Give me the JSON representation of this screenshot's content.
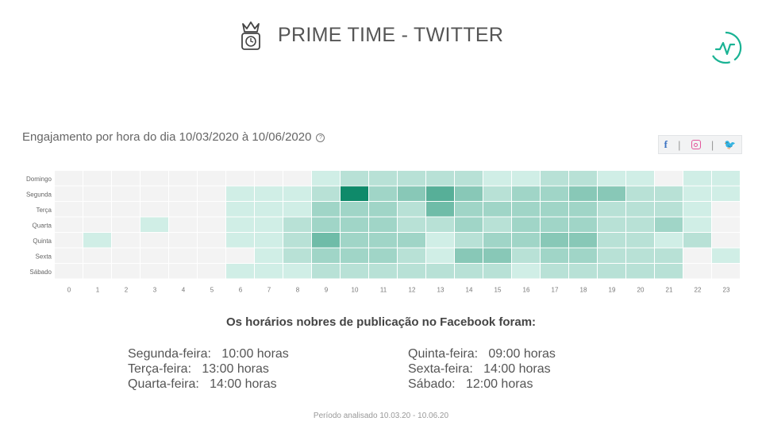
{
  "header": {
    "title": "PRIME TIME - TWITTER",
    "crown_icon": "crown-clock-icon",
    "logo_icon": "activity-logo-icon",
    "accent": "#1ab394"
  },
  "subtitle": "Engajamento por hora do dia 10/03/2020 à 10/06/2020",
  "help_symbol": "?",
  "social": {
    "facebook": "f",
    "separator": "|",
    "twitter": "🐦"
  },
  "chart_data": {
    "type": "heatmap",
    "rows": [
      "Domingo",
      "Segunda",
      "Terça",
      "Quarta",
      "Quinta",
      "Sexta",
      "Sábado"
    ],
    "columns": [
      "0",
      "1",
      "2",
      "3",
      "4",
      "5",
      "6",
      "7",
      "8",
      "9",
      "10",
      "11",
      "12",
      "13",
      "14",
      "15",
      "16",
      "17",
      "18",
      "19",
      "20",
      "21",
      "22",
      "23"
    ],
    "scale": "0 = no engagement (grey), 1 = minimal, 9 = maximum (dark green)",
    "values": [
      [
        0,
        0,
        0,
        0,
        0,
        0,
        0,
        0,
        0,
        1,
        2,
        2,
        2,
        2,
        2,
        1,
        1,
        2,
        2,
        1,
        1,
        0,
        1,
        1
      ],
      [
        0,
        0,
        0,
        0,
        0,
        0,
        1,
        1,
        1,
        2,
        9,
        3,
        4,
        6,
        4,
        2,
        3,
        3,
        4,
        4,
        2,
        2,
        1,
        1
      ],
      [
        0,
        0,
        0,
        0,
        0,
        0,
        1,
        1,
        1,
        3,
        3,
        3,
        2,
        5,
        3,
        3,
        3,
        3,
        3,
        2,
        2,
        2,
        1,
        0
      ],
      [
        0,
        0,
        0,
        1,
        0,
        0,
        1,
        1,
        2,
        3,
        3,
        3,
        2,
        2,
        3,
        2,
        3,
        3,
        3,
        2,
        2,
        3,
        1,
        0
      ],
      [
        0,
        1,
        0,
        0,
        0,
        0,
        1,
        1,
        2,
        5,
        3,
        3,
        3,
        1,
        2,
        3,
        3,
        4,
        4,
        2,
        2,
        1,
        2,
        0
      ],
      [
        0,
        0,
        0,
        0,
        0,
        0,
        0,
        1,
        2,
        3,
        3,
        3,
        2,
        1,
        4,
        4,
        2,
        3,
        3,
        2,
        2,
        2,
        0,
        1
      ],
      [
        0,
        0,
        0,
        0,
        0,
        0,
        1,
        1,
        1,
        2,
        2,
        2,
        2,
        2,
        2,
        2,
        1,
        2,
        2,
        2,
        2,
        2,
        0,
        0
      ]
    ],
    "colors": {
      "empty": "#f3f3f3",
      "high": "#0f8a6a"
    }
  },
  "summary": {
    "title": "Os horários nobres de publicação no Facebook foram:",
    "left": [
      "Segunda-feira:   10:00 horas",
      "Terça-feira:   13:00 horas",
      "Quarta-feira:   14:00 horas"
    ],
    "right": [
      "Quinta-feira:   09:00 horas",
      "Sexta-feira:   14:00 horas",
      "Sábado:   12:00 horas"
    ]
  },
  "footer": "Período analisado 10.03.20 - 10.06.20"
}
